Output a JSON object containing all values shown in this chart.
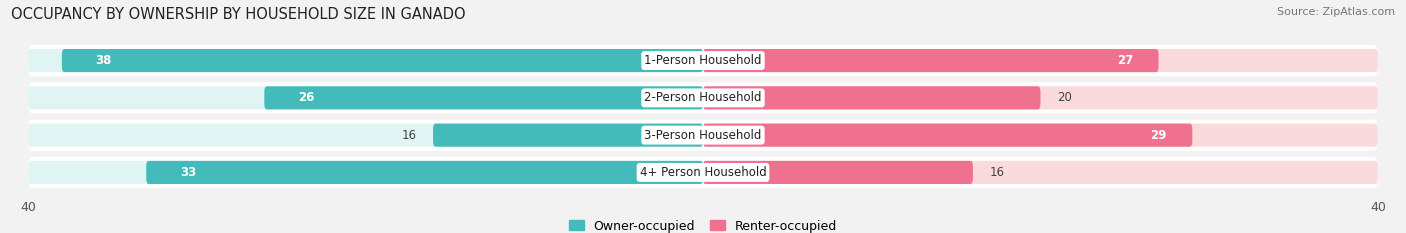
{
  "title": "OCCUPANCY BY OWNERSHIP BY HOUSEHOLD SIZE IN GANADO",
  "source": "Source: ZipAtlas.com",
  "categories": [
    "1-Person Household",
    "2-Person Household",
    "3-Person Household",
    "4+ Person Household"
  ],
  "owner_values": [
    38,
    26,
    16,
    33
  ],
  "renter_values": [
    27,
    20,
    29,
    16
  ],
  "owner_color": "#45BABA",
  "renter_color": "#F07090",
  "owner_light_color": "#E0F4F4",
  "renter_light_color": "#FADADD",
  "row_bg_color": "#ECECEC",
  "xlim": 40,
  "bar_height": 0.62,
  "owner_label": "Owner-occupied",
  "renter_label": "Renter-occupied",
  "background_color": "#F2F2F2",
  "title_fontsize": 10.5,
  "source_fontsize": 8,
  "tick_fontsize": 9,
  "value_fontsize": 8.5,
  "category_fontsize": 8.5
}
